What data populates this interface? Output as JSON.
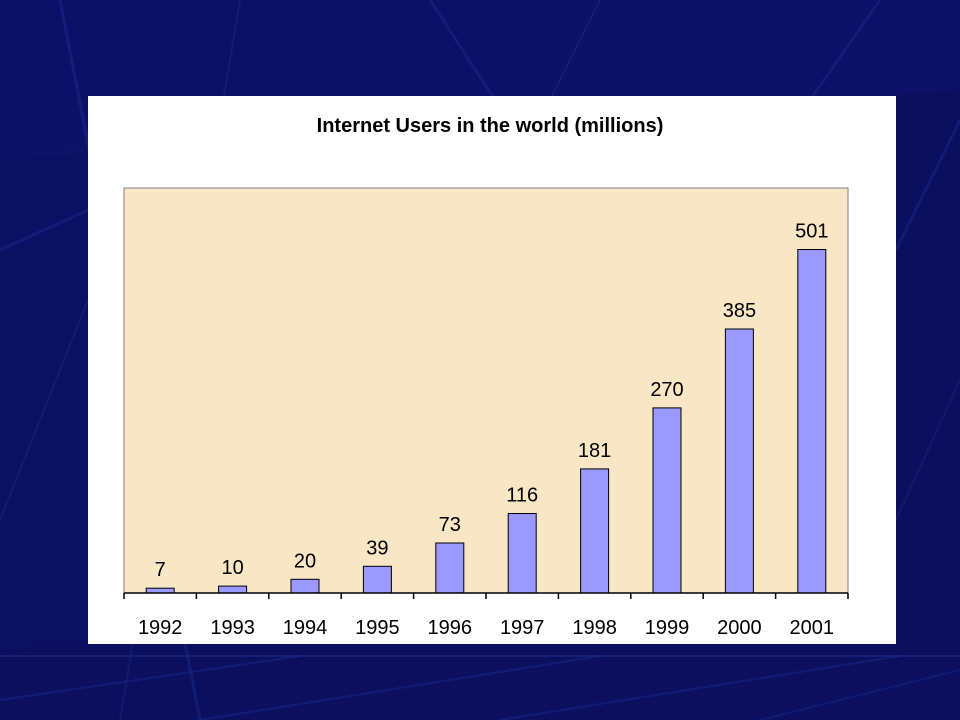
{
  "colors": {
    "background": "#0b0f5e",
    "plot_area": "#f8e6c4",
    "bar": "#9999ff",
    "bar_outline": "#000000"
  },
  "chart_data": {
    "type": "bar",
    "title": "Internet Users in the world (millions)",
    "xlabel": "",
    "ylabel": "",
    "categories": [
      "1992",
      "1993",
      "1994",
      "1995",
      "1996",
      "1997",
      "1998",
      "1999",
      "2000",
      "2001"
    ],
    "values": [
      7,
      10,
      20,
      39,
      73,
      116,
      181,
      270,
      385,
      501
    ],
    "ylim": [
      0,
      550
    ],
    "grid": false,
    "legend": "none"
  }
}
